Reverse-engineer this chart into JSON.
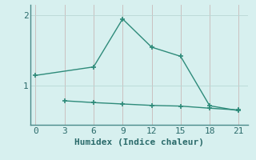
{
  "line1_x": [
    0,
    6,
    9,
    12,
    15,
    18,
    21
  ],
  "line1_y": [
    1.15,
    1.27,
    1.95,
    1.55,
    1.42,
    0.72,
    0.65
  ],
  "line2_x": [
    3,
    6,
    9,
    12,
    15,
    18,
    21
  ],
  "line2_y": [
    0.79,
    0.765,
    0.745,
    0.725,
    0.715,
    0.685,
    0.66
  ],
  "line_color": "#2e8b7a",
  "bg_color": "#d7f0ef",
  "grid_color": "#b8d8d4",
  "xlabel": "Humidex (Indice chaleur)",
  "xticks": [
    0,
    3,
    6,
    9,
    12,
    15,
    18,
    21
  ],
  "yticks": [
    1,
    2
  ],
  "xlim": [
    -0.5,
    22
  ],
  "ylim": [
    0.45,
    2.15
  ],
  "marker": "+",
  "markersize": 5,
  "markeredgewidth": 1.2,
  "linewidth": 1.0,
  "xlabel_fontsize": 8,
  "tick_fontsize": 8,
  "spine_color": "#4a8a8a",
  "tick_color": "#2a6a6a"
}
